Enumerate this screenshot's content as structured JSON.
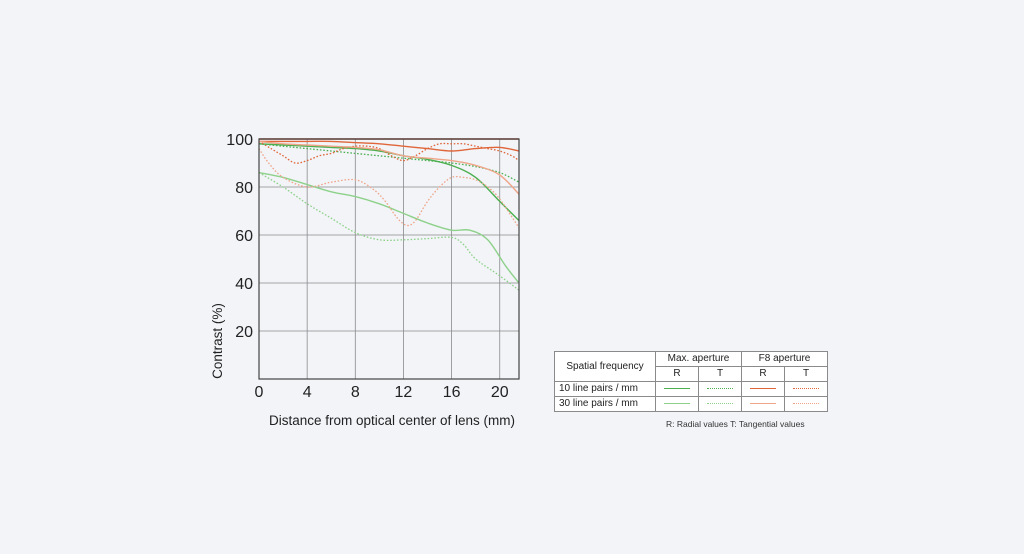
{
  "chart_data": {
    "type": "line",
    "xlabel": "Distance from optical center of lens (mm)",
    "ylabel": "Contrast (%)",
    "xlim": [
      0,
      21.6
    ],
    "ylim": [
      0,
      100
    ],
    "xticks": [
      0,
      4,
      8,
      12,
      16,
      20
    ],
    "yticks": [
      20,
      40,
      60,
      80,
      100
    ],
    "grid": true,
    "series": [
      {
        "name": "10 line pairs / mm R (Max. aperture)",
        "color": "#4caf50",
        "dash": "solid",
        "x": [
          0,
          2,
          4,
          6,
          8,
          10,
          12,
          14,
          16,
          18,
          20,
          21.6
        ],
        "y": [
          98,
          97.5,
          97,
          96.5,
          96,
          95,
          93,
          91.5,
          89,
          84,
          74,
          66
        ]
      },
      {
        "name": "10 line pairs / mm T (Max. aperture)",
        "color": "#4caf50",
        "dash": "dotted",
        "x": [
          0,
          2,
          4,
          6,
          8,
          10,
          12,
          14,
          16,
          18,
          20,
          21.6
        ],
        "y": [
          98,
          97,
          96,
          95,
          94,
          93,
          92,
          91,
          90,
          88.5,
          86,
          82
        ]
      },
      {
        "name": "30 line pairs / mm R (Max. aperture)",
        "color": "#8ed18a",
        "dash": "solid",
        "x": [
          0,
          2,
          4,
          6,
          8,
          10,
          12,
          14,
          16,
          17.5,
          19,
          20.5,
          21.6
        ],
        "y": [
          86,
          84,
          81,
          78,
          76,
          73,
          69,
          65,
          62,
          62,
          58,
          47,
          40
        ]
      },
      {
        "name": "30 line pairs / mm T (Max. aperture)",
        "color": "#8ed18a",
        "dash": "dotted",
        "x": [
          0,
          2,
          4,
          6,
          8,
          10,
          12,
          14,
          16,
          17,
          18,
          20,
          21.6
        ],
        "y": [
          86,
          80,
          73,
          67,
          61,
          58,
          58,
          58.5,
          59,
          56,
          50,
          43,
          37
        ]
      },
      {
        "name": "10 line pairs / mm R (F8 aperture)",
        "color": "#e0663a",
        "dash": "solid",
        "x": [
          0,
          2,
          4,
          6,
          8,
          10,
          12,
          14,
          16,
          18,
          20,
          21.6
        ],
        "y": [
          99,
          99,
          99,
          99,
          98.5,
          98,
          97,
          96,
          95,
          96,
          96.5,
          95
        ]
      },
      {
        "name": "10 line pairs / mm T (F8 aperture)",
        "color": "#e0663a",
        "dash": "dotted",
        "x": [
          0,
          1,
          2,
          3,
          4,
          5,
          6,
          7,
          8,
          9,
          10,
          11,
          12,
          13,
          14,
          15,
          16,
          17,
          18,
          19,
          20,
          21,
          21.6
        ],
        "y": [
          99,
          96,
          93,
          90,
          91,
          93,
          94,
          96,
          97,
          97,
          96,
          93,
          91,
          93,
          96,
          98,
          98,
          98,
          97,
          96,
          95,
          93,
          91
        ]
      },
      {
        "name": "30 line pairs / mm R (F8 aperture)",
        "color": "#efa589",
        "dash": "solid",
        "x": [
          0,
          2,
          4,
          6,
          8,
          10,
          12,
          14,
          16,
          18,
          20,
          21.6
        ],
        "y": [
          99,
          98,
          97.5,
          97,
          96.5,
          95.5,
          93,
          92,
          91,
          89,
          85,
          77
        ]
      },
      {
        "name": "30 line pairs / mm T (F8 aperture)",
        "color": "#efa589",
        "dash": "dotted",
        "x": [
          0,
          0.8,
          2,
          4,
          6,
          8,
          9.5,
          10.5,
          11.5,
          12.3,
          13,
          14,
          15,
          16,
          17,
          18,
          19,
          20,
          21.6
        ],
        "y": [
          96,
          90,
          84,
          80,
          82,
          83,
          79,
          74,
          67,
          64,
          66,
          74,
          80,
          84,
          84,
          83,
          80,
          75,
          63
        ]
      },
      {
        "name": "Reference 100%",
        "color": "#b34026",
        "dash": "solid",
        "x": [
          0,
          21.6
        ],
        "y": [
          100,
          100
        ]
      }
    ]
  },
  "legend": {
    "header_spatial": "Spatial frequency",
    "header_max": "Max. aperture",
    "header_f8": "F8 aperture",
    "col_r": "R",
    "col_t": "T",
    "row_10": "10 line pairs / mm",
    "row_30": "30 line pairs / mm",
    "note": "R: Radial values  T: Tangential values"
  }
}
